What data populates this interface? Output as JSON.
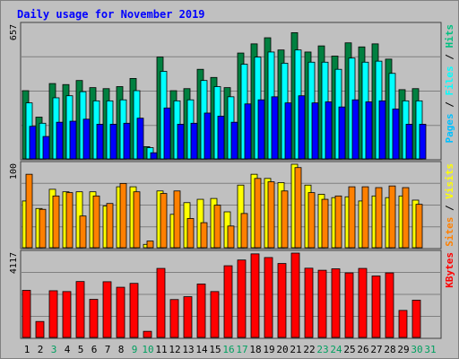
{
  "chart_data": {
    "type": "bar",
    "title": "Daily usage for November 2019",
    "categories": [
      "1",
      "2",
      "3",
      "4",
      "5",
      "6",
      "7",
      "8",
      "9",
      "10",
      "11",
      "12",
      "13",
      "14",
      "15",
      "16",
      "17",
      "18",
      "19",
      "20",
      "21",
      "22",
      "23",
      "24",
      "25",
      "26",
      "27",
      "28",
      "29",
      "30",
      "31"
    ],
    "weekend_days": [
      3,
      9,
      10,
      16,
      17,
      23,
      24,
      30,
      31
    ],
    "panels": [
      {
        "id": "top",
        "ymax_label": "657",
        "ylim": [
          0,
          657
        ],
        "right_label": [
          "Pages",
          "Files",
          "Hits"
        ],
        "series": [
          {
            "name": "Hits",
            "color": "#008040",
            "values": [
              335,
              205,
              370,
              365,
              385,
              350,
              345,
              355,
              395,
              60,
              500,
              335,
              345,
              440,
              400,
              350,
              520,
              565,
              595,
              535,
              620,
              525,
              555,
              505,
              570,
              550,
              565,
              490,
              340,
              345
            ]
          },
          {
            "name": "Files",
            "color": "#00ffff",
            "values": [
              275,
              175,
              300,
              310,
              330,
              285,
              285,
              290,
              335,
              55,
              430,
              285,
              290,
              385,
              355,
              305,
              465,
              500,
              525,
              470,
              535,
              475,
              475,
              440,
              495,
              475,
              480,
              420,
              285,
              285
            ]
          },
          {
            "name": "Pages",
            "color": "#0000ff",
            "values": [
              160,
              110,
              180,
              185,
              195,
              170,
              170,
              175,
              200,
              30,
              250,
              170,
              175,
              225,
              210,
              180,
              270,
              290,
              305,
              275,
              310,
              275,
              280,
              255,
              290,
              280,
              285,
              245,
              170,
              170
            ]
          }
        ]
      },
      {
        "id": "middle",
        "ymax_label": "100",
        "ylim": [
          0,
          100
        ],
        "right_label": [
          "Sites",
          "Visits"
        ],
        "series": [
          {
            "name": "Visits",
            "color": "#ffff00",
            "values": [
              56,
              47,
              70,
              67,
              67,
              67,
              50,
              73,
              73,
              4,
              68,
              40,
              54,
              58,
              59,
              43,
              75,
              88,
              83,
              78,
              100,
              75,
              64,
              60,
              61,
              56,
              62,
              60,
              62,
              57
            ]
          },
          {
            "name": "Sites",
            "color": "#ff8000",
            "values": [
              88,
              46,
              62,
              66,
              38,
              62,
              53,
              77,
              67,
              8,
              65,
              68,
              35,
              30,
              51,
              26,
              41,
              83,
              79,
              68,
              96,
              66,
              58,
              62,
              73,
              73,
              72,
              74,
              72,
              52
            ]
          }
        ]
      },
      {
        "id": "bottom",
        "ymax_label": "4117",
        "ylim": [
          0,
          4117
        ],
        "right_label": [
          "KBytes"
        ],
        "series": [
          {
            "name": "KBytes",
            "color": "#ff0000",
            "values": [
              2300,
              780,
              2280,
              2240,
              2730,
              1860,
              2720,
              2450,
              2640,
              300,
              3370,
              1850,
              1990,
              2610,
              2240,
              3500,
              3780,
              4080,
              3900,
              3610,
              4117,
              3380,
              3280,
              3350,
              3150,
              3370,
              3000,
              3150,
              1320,
              1820
            ]
          }
        ]
      }
    ]
  }
}
